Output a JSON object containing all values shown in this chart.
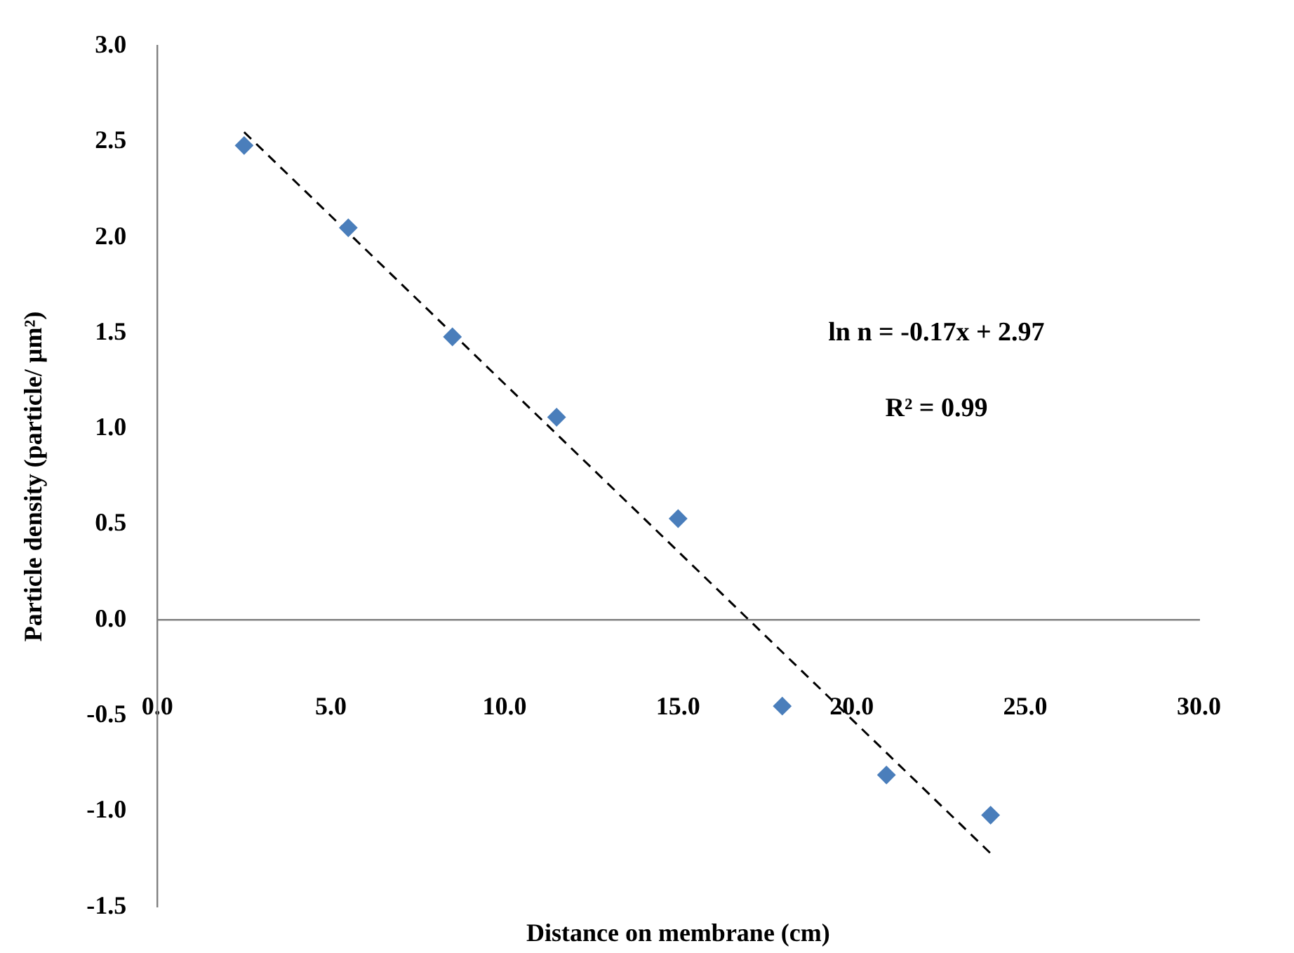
{
  "chart_data": {
    "type": "scatter",
    "xlabel": "Distance on membrane (cm)",
    "ylabel": "Particle density (particle/ µm²)",
    "xlim": [
      0,
      30
    ],
    "xticks": [
      {
        "value": 0,
        "label": "0.0"
      },
      {
        "value": 5,
        "label": "5.0"
      },
      {
        "value": 10,
        "label": "10.0"
      },
      {
        "value": 15,
        "label": "15.0"
      },
      {
        "value": 20,
        "label": "20.0"
      },
      {
        "value": 25,
        "label": "25.0"
      },
      {
        "value": 30,
        "label": "30.0"
      }
    ],
    "ylim": [
      -1.5,
      3
    ],
    "yticks": [
      {
        "value": -1.5,
        "label": "-1.5"
      },
      {
        "value": -1,
        "label": "-1.0"
      },
      {
        "value": -0.5,
        "label": "-0.5"
      },
      {
        "value": 0,
        "label": "0.0"
      },
      {
        "value": 0.5,
        "label": "0.5"
      },
      {
        "value": 1,
        "label": "1.0"
      },
      {
        "value": 1.5,
        "label": "1.5"
      },
      {
        "value": 2,
        "label": "2.0"
      },
      {
        "value": 2.5,
        "label": "2.5"
      },
      {
        "value": 3,
        "label": "3.0"
      }
    ],
    "marker": "diamond",
    "series": [
      {
        "color": "#4a7ebb",
        "x": [
          2.5,
          5.5,
          8.5,
          11.5,
          15,
          18,
          21,
          24
        ],
        "values": [
          2.48,
          2.05,
          1.48,
          1.06,
          0.53,
          -0.45,
          -0.81,
          -1.02
        ]
      },
      {
        "type": "line",
        "color": "#000000",
        "line_style": "dashed",
        "marker": "none",
        "x": [
          2.5,
          24
        ],
        "values": [
          2.55,
          -1.22
        ]
      }
    ],
    "annotations": [
      "ln n = -0.17x + 2.97",
      "R² = 0.99"
    ]
  }
}
